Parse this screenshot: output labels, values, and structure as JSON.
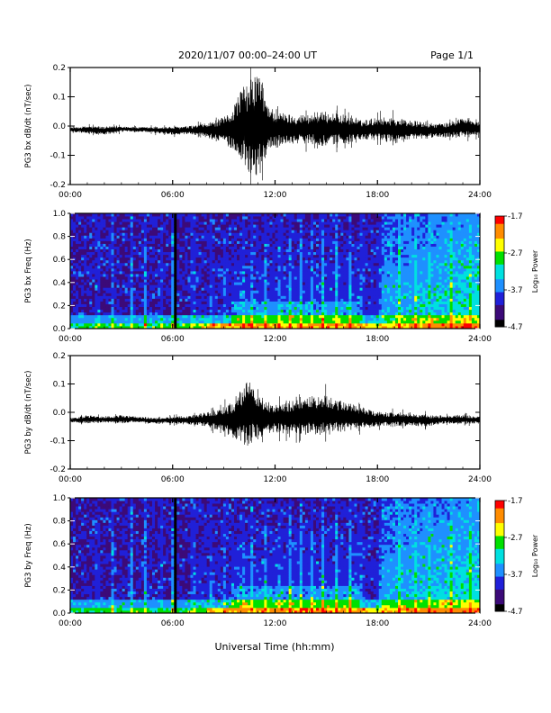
{
  "header": {
    "title": "2020/11/07  00:00–24:00 UT",
    "page_label": "Page 1/1"
  },
  "xaxis": {
    "label": "Universal Time (hh:mm)",
    "ticks": [
      "00:00",
      "06:00",
      "12:00",
      "18:00",
      "24:00"
    ],
    "range_hours": [
      0,
      24
    ]
  },
  "colorbar": {
    "label": "Log₁₀ Power",
    "ticks": [
      "-1.7",
      "-2.7",
      "-3.7",
      "-4.7"
    ],
    "range": [
      -4.7,
      -1.7
    ],
    "colors": [
      "#000000",
      "#3c0a78",
      "#2020d8",
      "#1e90ff",
      "#00e0e0",
      "#00e000",
      "#ffff00",
      "#ff8c00",
      "#ff0000"
    ]
  },
  "chart_data": [
    {
      "type": "line",
      "ylabel": "PG3 bx dB/dt (nT/sec)",
      "ylim": [
        -0.2,
        0.2
      ],
      "yticks": [
        "0.2",
        "0.1",
        "0.0",
        "-0.1",
        "-0.2"
      ],
      "x_units": "hours UT",
      "envelope": {
        "x": [
          0,
          1,
          2,
          3,
          4,
          5,
          6,
          7,
          8,
          9,
          9.5,
          10,
          10.5,
          11,
          11.5,
          12,
          13,
          14,
          15,
          16,
          17,
          18,
          19,
          20,
          21,
          22,
          23,
          24
        ],
        "upper": [
          -0.005,
          0.0,
          -0.002,
          0.0,
          -0.004,
          -0.003,
          -0.002,
          0.0,
          0.01,
          0.03,
          0.06,
          0.13,
          0.15,
          0.2,
          0.09,
          0.05,
          0.04,
          0.04,
          0.05,
          0.04,
          0.02,
          0.03,
          0.03,
          0.02,
          0.01,
          0.01,
          0.03,
          0.01
        ],
        "lower": [
          -0.02,
          -0.025,
          -0.03,
          -0.02,
          -0.02,
          -0.025,
          -0.03,
          -0.03,
          -0.04,
          -0.06,
          -0.08,
          -0.12,
          -0.16,
          -0.19,
          -0.1,
          -0.07,
          -0.06,
          -0.06,
          -0.07,
          -0.06,
          -0.05,
          -0.05,
          -0.06,
          -0.05,
          -0.04,
          -0.04,
          -0.04,
          -0.03
        ]
      }
    },
    {
      "type": "heatmap",
      "ylabel": "PG3 bx Freq (Hz)",
      "ylim": [
        0.0,
        1.0
      ],
      "yticks": [
        "1.0",
        "0.8",
        "0.6",
        "0.4",
        "0.2",
        "0.0"
      ],
      "zlim": [
        -4.7,
        -1.7
      ],
      "x_units": "hours UT"
    },
    {
      "type": "line",
      "ylabel": "PG3 by dB/dt (nT/sec)",
      "ylim": [
        -0.2,
        0.2
      ],
      "yticks": [
        "0.2",
        "0.1",
        "0.0",
        "-0.1",
        "-0.2"
      ],
      "x_units": "hours UT",
      "envelope": {
        "x": [
          0,
          1,
          2,
          3,
          4,
          5,
          6,
          7,
          8,
          9,
          9.5,
          10,
          10.5,
          11,
          11.5,
          12,
          13,
          14,
          15,
          16,
          17,
          18,
          19,
          20,
          21,
          22,
          23,
          24
        ],
        "upper": [
          -0.02,
          -0.01,
          -0.015,
          -0.01,
          -0.015,
          -0.02,
          -0.015,
          -0.01,
          0.0,
          0.02,
          0.04,
          0.08,
          0.13,
          0.06,
          0.04,
          0.03,
          0.04,
          0.06,
          0.06,
          0.04,
          0.02,
          0.0,
          0.0,
          0.0,
          -0.01,
          -0.01,
          -0.01,
          -0.015
        ],
        "lower": [
          -0.035,
          -0.04,
          -0.035,
          -0.04,
          -0.035,
          -0.04,
          -0.04,
          -0.045,
          -0.05,
          -0.07,
          -0.09,
          -0.11,
          -0.12,
          -0.09,
          -0.08,
          -0.07,
          -0.08,
          -0.08,
          -0.08,
          -0.07,
          -0.06,
          -0.05,
          -0.05,
          -0.05,
          -0.05,
          -0.04,
          -0.04,
          -0.04
        ]
      }
    },
    {
      "type": "heatmap",
      "ylabel": "PG3 by Freq (Hz)",
      "ylim": [
        0.0,
        1.0
      ],
      "yticks": [
        "1.0",
        "0.8",
        "0.6",
        "0.4",
        "0.2",
        "0.0"
      ],
      "zlim": [
        -4.7,
        -1.7
      ],
      "x_units": "hours UT"
    }
  ]
}
